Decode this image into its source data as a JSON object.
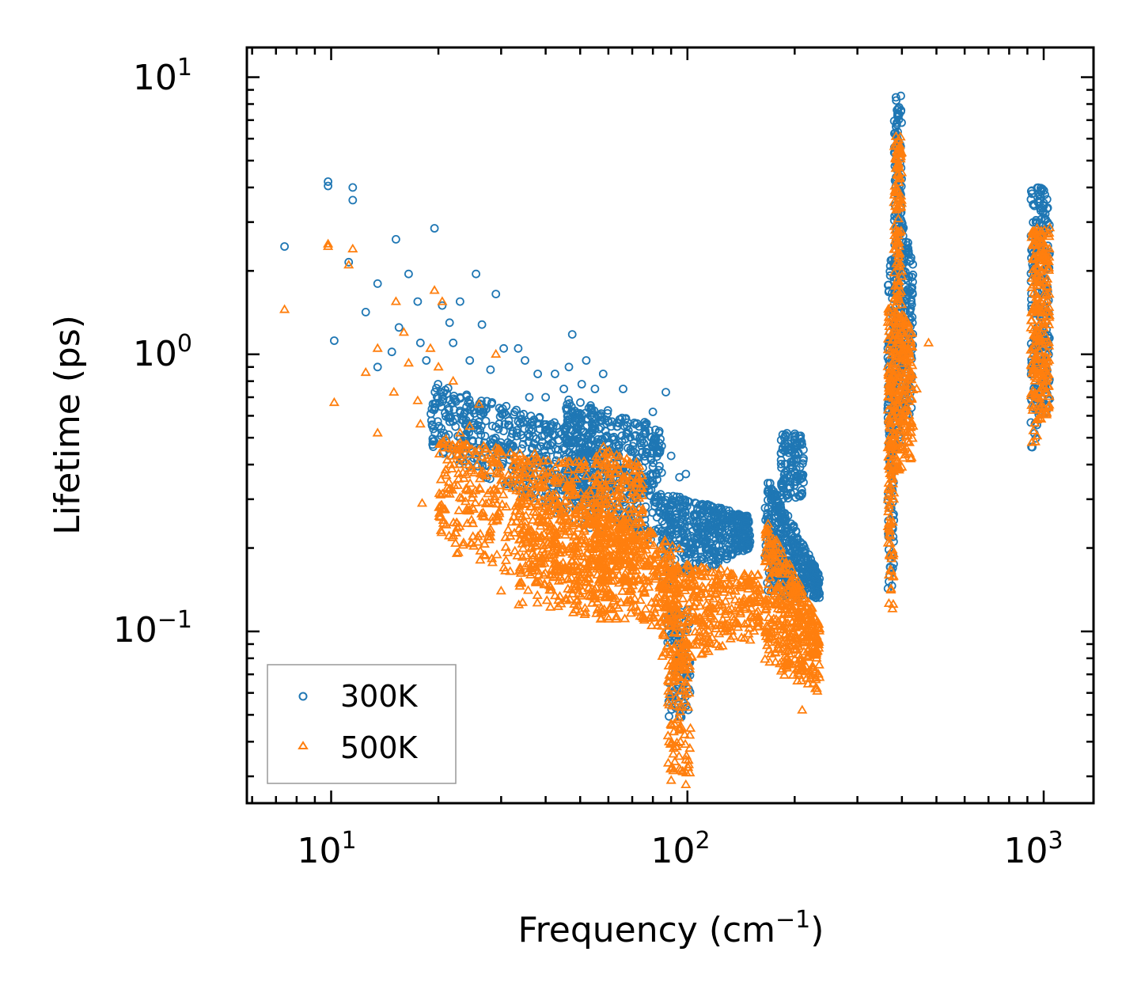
{
  "chart_data": {
    "type": "scatter",
    "xscale": "log",
    "yscale": "log",
    "xlim": [
      5.8,
      1380
    ],
    "ylim": [
      0.024,
      12.8
    ],
    "xlabel": "Frequency (cm",
    "xlabel_sup": "−1",
    "xlabel_end": ")",
    "ylabel": "Lifetime (ps)",
    "x_ticks": [
      {
        "value": 10,
        "base": "10",
        "exp": "1"
      },
      {
        "value": 100,
        "base": "10",
        "exp": "2"
      },
      {
        "value": 1000,
        "base": "10",
        "exp": "3"
      }
    ],
    "y_ticks": [
      {
        "value": 0.1,
        "base": "10",
        "exp": "−1"
      },
      {
        "value": 1,
        "base": "10",
        "exp": "0"
      },
      {
        "value": 10,
        "base": "10",
        "exp": "1"
      }
    ],
    "legend_position": "bottom-left",
    "series": [
      {
        "name": "300K",
        "marker": "circle",
        "color": "#1f77b4",
        "points": [
          [
            7.4,
            2.45
          ],
          [
            9.8,
            4.2
          ],
          [
            9.8,
            4.05
          ],
          [
            10.2,
            1.12
          ],
          [
            11.2,
            2.15
          ],
          [
            11.5,
            4.0
          ],
          [
            11.5,
            3.6
          ],
          [
            12.5,
            1.42
          ],
          [
            13.5,
            1.8
          ],
          [
            13.5,
            0.9
          ],
          [
            14.8,
            1.02
          ],
          [
            15.2,
            2.6
          ],
          [
            15.5,
            1.25
          ],
          [
            16.5,
            1.95
          ],
          [
            17.5,
            1.55
          ],
          [
            18.5,
            0.95
          ],
          [
            19.5,
            2.85
          ],
          [
            17.8,
            1.1
          ],
          [
            20.5,
            1.5
          ],
          [
            21.5,
            1.3
          ],
          [
            22.0,
            1.1
          ],
          [
            23.0,
            1.55
          ],
          [
            24.5,
            0.95
          ],
          [
            25.5,
            1.95
          ],
          [
            26.5,
            1.28
          ],
          [
            28.0,
            0.88
          ],
          [
            29.0,
            1.65
          ],
          [
            30.5,
            1.05
          ],
          [
            31.0,
            0.65
          ],
          [
            33.5,
            1.05
          ],
          [
            35.0,
            0.95
          ],
          [
            36.0,
            0.7
          ],
          [
            38.0,
            0.85
          ],
          [
            40.0,
            0.7
          ],
          [
            42.5,
            0.85
          ],
          [
            45.0,
            0.75
          ],
          [
            46.5,
            0.9
          ],
          [
            47.5,
            1.18
          ],
          [
            50.5,
            0.78
          ],
          [
            52.0,
            0.95
          ],
          [
            55.0,
            0.75
          ],
          [
            58.0,
            0.85
          ],
          [
            66.0,
            0.75
          ],
          [
            80.0,
            0.62
          ],
          [
            87.0,
            0.73
          ],
          [
            90.0,
            0.43
          ],
          [
            95.0,
            0.36
          ],
          [
            99.0,
            0.37
          ]
        ],
        "clusters": [
          {
            "x": [
              19,
              58
            ],
            "y_top": [
              0.8,
              0.5
            ],
            "y_bottom": [
              0.45,
              0.22
            ],
            "n": 500
          },
          {
            "x": [
              45,
              85
            ],
            "y_top": [
              0.7,
              0.55
            ],
            "y_bottom": [
              0.32,
              0.2
            ],
            "n": 500
          },
          {
            "x": [
              85,
              150
            ],
            "y_top": [
              0.32,
              0.26
            ],
            "y_bottom": [
              0.14,
              0.2
            ],
            "n": 450
          },
          {
            "x": [
              88,
              102
            ],
            "y_top": [
              0.12,
              0.12
            ],
            "y_bottom": [
              0.048,
              0.048
            ],
            "n": 100
          },
          {
            "x": [
              165,
              235
            ],
            "y_top": [
              0.38,
              0.16
            ],
            "y_bottom": [
              0.13,
              0.13
            ],
            "n": 380
          },
          {
            "x": [
              183,
              212
            ],
            "y_top": [
              0.52,
              0.52
            ],
            "y_bottom": [
              0.3,
              0.3
            ],
            "n": 120
          },
          {
            "x": [
              365,
              380
            ],
            "y_top": [
              2.2,
              2.2
            ],
            "y_bottom": [
              0.14,
              0.14
            ],
            "n": 130
          },
          {
            "x": [
              380,
              400
            ],
            "y_top": [
              8.8,
              8.8
            ],
            "y_bottom": [
              0.45,
              0.45
            ],
            "n": 180
          },
          {
            "x": [
              400,
              430
            ],
            "y_top": [
              3.0,
              2.2
            ],
            "y_bottom": [
              0.6,
              0.6
            ],
            "n": 120
          },
          {
            "x": [
              920,
              1040
            ],
            "y_top": [
              4.0,
              4.0
            ],
            "y_bottom": [
              0.45,
              0.6
            ],
            "n": 220
          }
        ]
      },
      {
        "name": "500K",
        "marker": "triangle",
        "color": "#ff7f0e",
        "points": [
          [
            7.4,
            1.45
          ],
          [
            9.8,
            2.5
          ],
          [
            9.8,
            2.45
          ],
          [
            10.2,
            0.67
          ],
          [
            11.2,
            2.1
          ],
          [
            11.5,
            2.4
          ],
          [
            12.5,
            0.86
          ],
          [
            13.5,
            1.05
          ],
          [
            13.5,
            0.52
          ],
          [
            15.0,
            0.73
          ],
          [
            15.2,
            1.55
          ],
          [
            16.0,
            1.2
          ],
          [
            16.5,
            0.93
          ],
          [
            17.5,
            0.68
          ],
          [
            17.8,
            0.56
          ],
          [
            18.0,
            0.29
          ],
          [
            19.0,
            1.05
          ],
          [
            19.5,
            1.7
          ],
          [
            20.0,
            0.9
          ],
          [
            20.5,
            1.55
          ],
          [
            21.5,
            0.47
          ],
          [
            22.0,
            0.8
          ],
          [
            23.0,
            0.52
          ],
          [
            24.5,
            0.55
          ],
          [
            25.0,
            0.22
          ],
          [
            26.0,
            0.66
          ],
          [
            28.0,
            0.38
          ],
          [
            29.0,
            1.0
          ],
          [
            30.0,
            0.14
          ],
          [
            90.0,
            0.029
          ],
          [
            95.0,
            0.032
          ],
          [
            99.0,
            0.028
          ],
          [
            210.0,
            0.052
          ],
          [
            230.0,
            0.082
          ],
          [
            150.0,
            0.093
          ],
          [
            145.0,
            0.12
          ],
          [
            475.0,
            1.1
          ],
          [
            440.0,
            0.75
          ],
          [
            430.0,
            0.55
          ],
          [
            420.0,
            0.48
          ]
        ],
        "clusters": [
          {
            "x": [
              20,
              60
            ],
            "y_top": [
              0.5,
              0.4
            ],
            "y_bottom": [
              0.2,
              0.12
            ],
            "n": 450
          },
          {
            "x": [
              33,
              95
            ],
            "y_top": [
              0.45,
              0.2
            ],
            "y_bottom": [
              0.12,
              0.1
            ],
            "n": 650
          },
          {
            "x": [
              55,
              75
            ],
            "y_top": [
              0.48,
              0.4
            ],
            "y_bottom": [
              0.14,
              0.14
            ],
            "n": 220
          },
          {
            "x": [
              85,
              160
            ],
            "y_top": [
              0.18,
              0.16
            ],
            "y_bottom": [
              0.07,
              0.1
            ],
            "n": 350
          },
          {
            "x": [
              88,
              102
            ],
            "y_top": [
              0.09,
              0.09
            ],
            "y_bottom": [
              0.03,
              0.03
            ],
            "n": 110
          },
          {
            "x": [
              165,
              235
            ],
            "y_top": [
              0.26,
              0.11
            ],
            "y_bottom": [
              0.075,
              0.06
            ],
            "n": 400
          },
          {
            "x": [
              365,
              380
            ],
            "y_top": [
              1.5,
              1.5
            ],
            "y_bottom": [
              0.12,
              0.12
            ],
            "n": 140
          },
          {
            "x": [
              380,
              400
            ],
            "y_top": [
              6.2,
              6.2
            ],
            "y_bottom": [
              0.38,
              0.38
            ],
            "n": 200
          },
          {
            "x": [
              400,
              430
            ],
            "y_top": [
              1.5,
              1.2
            ],
            "y_bottom": [
              0.4,
              0.4
            ],
            "n": 100
          },
          {
            "x": [
              920,
              1040
            ],
            "y_top": [
              2.9,
              2.9
            ],
            "y_bottom": [
              0.42,
              0.65
            ],
            "n": 250
          }
        ]
      }
    ]
  }
}
